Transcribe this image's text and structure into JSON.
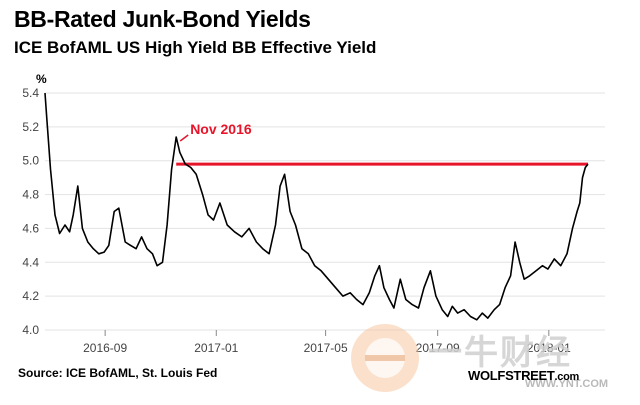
{
  "chart_data": {
    "type": "line",
    "title": "BB-Rated Junk-Bond Yields",
    "subtitle": "ICE BofAML US High Yield BB Effective Yield",
    "ylabel": "%",
    "xlabel": "",
    "ylim": [
      4.0,
      5.4
    ],
    "yticks": [
      "4.0",
      "4.2",
      "4.4",
      "4.6",
      "4.8",
      "5.0",
      "5.2",
      "5.4"
    ],
    "xticks": [
      {
        "label": "2016-09",
        "date": "2016-09-01"
      },
      {
        "label": "2017-01",
        "date": "2017-01-01"
      },
      {
        "label": "2017-05",
        "date": "2017-05-01"
      },
      {
        "label": "2017-09",
        "date": "2017-09-01"
      },
      {
        "label": "2018-01",
        "date": "2018-01-01"
      }
    ],
    "grid": "horizontal",
    "series": [
      {
        "color": "#000000",
        "x": [
          "2016-06-27",
          "2016-06-29",
          "2016-07-03",
          "2016-07-08",
          "2016-07-13",
          "2016-07-19",
          "2016-07-24",
          "2016-07-28",
          "2016-08-02",
          "2016-08-07",
          "2016-08-13",
          "2016-08-19",
          "2016-08-25",
          "2016-08-31",
          "2016-09-05",
          "2016-09-11",
          "2016-09-16",
          "2016-09-23",
          "2016-09-29",
          "2016-10-05",
          "2016-10-11",
          "2016-10-17",
          "2016-10-23",
          "2016-10-28",
          "2016-11-03",
          "2016-11-08",
          "2016-11-13",
          "2016-11-18",
          "2016-11-22",
          "2016-11-28",
          "2016-12-04",
          "2016-12-10",
          "2016-12-17",
          "2016-12-23",
          "2016-12-29",
          "2017-01-05",
          "2017-01-13",
          "2017-01-21",
          "2017-01-29",
          "2017-02-06",
          "2017-02-14",
          "2017-02-21",
          "2017-02-28",
          "2017-03-07",
          "2017-03-12",
          "2017-03-17",
          "2017-03-23",
          "2017-03-29",
          "2017-04-05",
          "2017-04-12",
          "2017-04-19",
          "2017-04-26",
          "2017-05-04",
          "2017-05-12",
          "2017-05-20",
          "2017-05-28",
          "2017-06-04",
          "2017-06-11",
          "2017-06-18",
          "2017-06-24",
          "2017-06-29",
          "2017-07-04",
          "2017-07-10",
          "2017-07-15",
          "2017-07-22",
          "2017-07-28",
          "2017-08-04",
          "2017-08-11",
          "2017-08-17",
          "2017-08-24",
          "2017-08-30",
          "2017-09-06",
          "2017-09-12",
          "2017-09-17",
          "2017-09-23",
          "2017-09-30",
          "2017-10-07",
          "2017-10-14",
          "2017-10-20",
          "2017-10-26",
          "2017-11-02",
          "2017-11-08",
          "2017-11-14",
          "2017-11-20",
          "2017-11-25",
          "2017-11-30",
          "2017-12-05",
          "2017-12-11",
          "2017-12-18",
          "2017-12-25",
          "2017-12-31",
          "2018-01-07",
          "2018-01-14",
          "2018-01-21",
          "2018-01-27",
          "2018-02-01",
          "2018-02-04",
          "2018-02-07",
          "2018-02-10",
          "2018-02-13"
        ],
        "y": [
          5.4,
          5.25,
          4.95,
          4.68,
          4.57,
          4.62,
          4.58,
          4.68,
          4.85,
          4.6,
          4.52,
          4.48,
          4.45,
          4.46,
          4.5,
          4.7,
          4.72,
          4.52,
          4.5,
          4.48,
          4.55,
          4.48,
          4.45,
          4.38,
          4.4,
          4.62,
          4.95,
          5.14,
          5.05,
          4.98,
          4.96,
          4.92,
          4.8,
          4.68,
          4.65,
          4.75,
          4.62,
          4.58,
          4.55,
          4.6,
          4.52,
          4.48,
          4.45,
          4.62,
          4.85,
          4.92,
          4.7,
          4.62,
          4.48,
          4.45,
          4.38,
          4.35,
          4.3,
          4.25,
          4.2,
          4.22,
          4.18,
          4.15,
          4.22,
          4.32,
          4.38,
          4.25,
          4.18,
          4.13,
          4.3,
          4.18,
          4.15,
          4.13,
          4.25,
          4.35,
          4.2,
          4.12,
          4.08,
          4.14,
          4.1,
          4.12,
          4.08,
          4.06,
          4.1,
          4.07,
          4.12,
          4.15,
          4.25,
          4.32,
          4.52,
          4.4,
          4.3,
          4.32,
          4.35,
          4.38,
          4.36,
          4.42,
          4.38,
          4.45,
          4.6,
          4.7,
          4.75,
          4.9,
          4.96,
          4.98
        ]
      }
    ],
    "reference_line": {
      "value": 4.98,
      "from": "2016-11-18",
      "to": "2018-02-13",
      "color": "#e8152a"
    },
    "annotation": {
      "text": "Nov 2016",
      "x": "2016-11-18",
      "y": 5.14,
      "color": "#e8152a"
    }
  },
  "source": "Source: ICE BofAML, St. Louis Fed",
  "brand": {
    "name": "WOLFSTREET",
    "suffix": ".com"
  },
  "watermark": {
    "text": "一牛财经",
    "url": "WWW.YNT.COM"
  }
}
